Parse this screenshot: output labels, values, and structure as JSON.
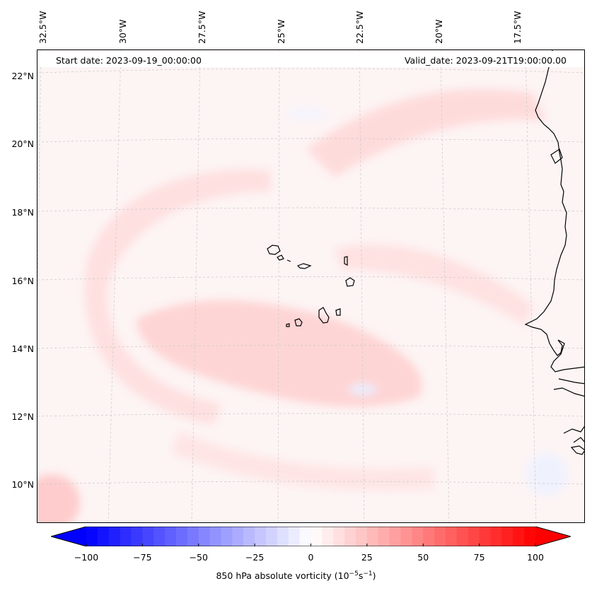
{
  "map": {
    "start_date": "Start date: 2023-09-19_00:00:00",
    "valid_date": "Valid_date: 2023-09-21T19:00:00.00",
    "lon_labels": [
      "32.5°W",
      "30°W",
      "27.5°W",
      "25°W",
      "22.5°W",
      "20°W",
      "17.5°W"
    ],
    "lat_labels": [
      "22°N",
      "20°N",
      "18°N",
      "16°N",
      "14°N",
      "12°N",
      "10°N"
    ],
    "colors": {
      "background_field": "#fdf4f4",
      "positive_vorticity": "#ffd6d6",
      "negative_vorticity": "#eef2ff",
      "coastline": "#000000",
      "gridline": "#c8c8c8"
    }
  },
  "colorbar": {
    "label_prefix": "850 hPa absolute vorticity (10",
    "label_exp1": "−5",
    "label_mid": "s",
    "label_exp2": "−1",
    "label_suffix": ")",
    "ticks": [
      "−100",
      "−75",
      "−50",
      "−25",
      "0",
      "25",
      "50",
      "75",
      "100"
    ],
    "min": -100,
    "max": 100,
    "colormap": "bwr",
    "extend": "both"
  }
}
